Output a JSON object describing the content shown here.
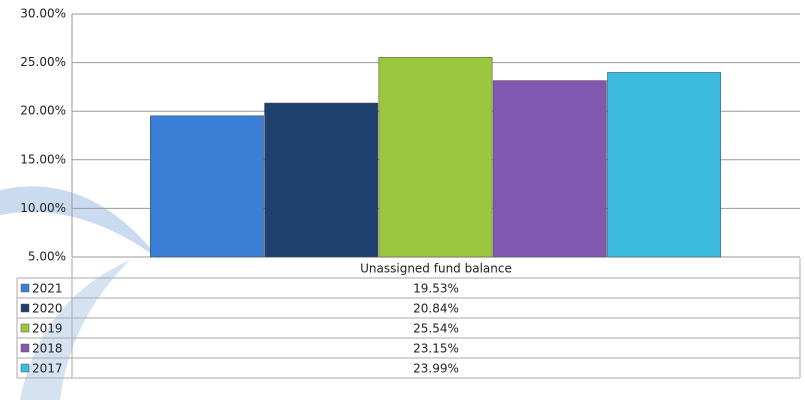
{
  "chart_data": {
    "type": "bar",
    "categories": [
      "Unassigned fund balance"
    ],
    "series": [
      {
        "name": "2021",
        "color": "#3a7fd5",
        "values": [
          19.53
        ],
        "value_labels": [
          "19.53%"
        ]
      },
      {
        "name": "2020",
        "color": "#1f3f6e",
        "values": [
          20.84
        ],
        "value_labels": [
          "20.84%"
        ]
      },
      {
        "name": "2019",
        "color": "#9bc640",
        "values": [
          25.54
        ],
        "value_labels": [
          "25.54%"
        ]
      },
      {
        "name": "2018",
        "color": "#8158b0",
        "values": [
          23.15
        ],
        "value_labels": [
          "23.15%"
        ]
      },
      {
        "name": "2017",
        "color": "#3bbbe0",
        "values": [
          23.99
        ],
        "value_labels": [
          "23.99%"
        ]
      }
    ],
    "ylim": [
      5,
      30
    ],
    "yticks": [
      {
        "value": 5,
        "label": "5.00%"
      },
      {
        "value": 10,
        "label": "10.00%"
      },
      {
        "value": 15,
        "label": "15.00%"
      },
      {
        "value": 20,
        "label": "20.00%"
      },
      {
        "value": 25,
        "label": "25.00%"
      },
      {
        "value": 30,
        "label": "30.00%"
      }
    ],
    "grid": true
  }
}
